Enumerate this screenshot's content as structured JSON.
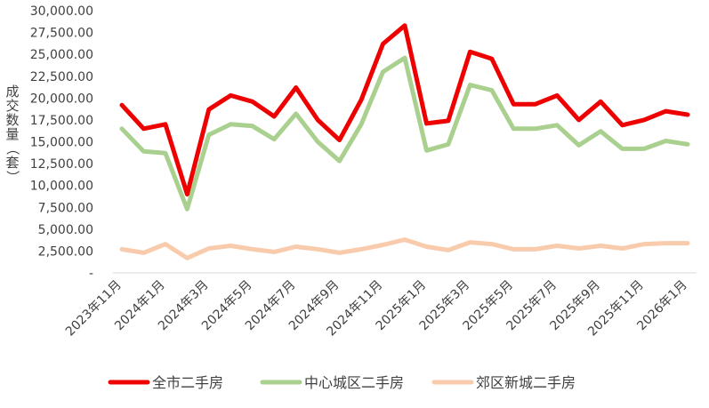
{
  "chart_data": {
    "type": "line",
    "ylabel": "成交数量（套）",
    "ylim": [
      0,
      30000
    ],
    "yticks": [
      {
        "value": 0,
        "label": "-"
      },
      {
        "value": 2500,
        "label": "2,500.00"
      },
      {
        "value": 5000,
        "label": "5,000.00"
      },
      {
        "value": 7500,
        "label": "7,500.00"
      },
      {
        "value": 10000,
        "label": "10,000.00"
      },
      {
        "value": 12500,
        "label": "12,500.00"
      },
      {
        "value": 15000,
        "label": "15,000.00"
      },
      {
        "value": 17500,
        "label": "17,500.00"
      },
      {
        "value": 20000,
        "label": "20,000.00"
      },
      {
        "value": 22500,
        "label": "22,500.00"
      },
      {
        "value": 25000,
        "label": "25,000.00"
      },
      {
        "value": 27500,
        "label": "27,500.00"
      },
      {
        "value": 30000,
        "label": "30,000.00"
      }
    ],
    "x": [
      "2023年11月",
      "2023年12月",
      "2024年1月",
      "2024年2月",
      "2024年3月",
      "2024年4月",
      "2024年5月",
      "2024年6月",
      "2024年7月",
      "2024年8月",
      "2024年9月",
      "2024年10月",
      "2024年11月",
      "2024年12月",
      "2025年1月",
      "2025年2月",
      "2025年3月",
      "2025年4月",
      "2025年5月",
      "2025年6月",
      "2025年7月",
      "2025年8月",
      "2025年9月",
      "2025年10月",
      "2025年11月",
      "2025年12月",
      "2026年1月"
    ],
    "xtick_labels": [
      "2023年11月",
      "2024年1月",
      "2024年3月",
      "2024年5月",
      "2024年7月",
      "2024年9月",
      "2024年11月",
      "2025年1月",
      "2025年3月",
      "2025年5月",
      "2025年7月",
      "2025年9月",
      "2025年11月",
      "2026年1月"
    ],
    "grid": false,
    "legend_position": "bottom",
    "series": [
      {
        "name": "全市二手房",
        "color": "#ee0000",
        "values": [
          19200,
          16500,
          17000,
          9000,
          18700,
          20300,
          19600,
          17900,
          21200,
          17500,
          15200,
          19800,
          26200,
          28300,
          17100,
          17400,
          25300,
          24500,
          19300,
          19300,
          20300,
          17500,
          19600,
          16900,
          17500,
          18500,
          18100
        ]
      },
      {
        "name": "中心城区二手房",
        "color": "#a9d08e",
        "values": [
          16500,
          13900,
          13700,
          7300,
          15800,
          17000,
          16800,
          15300,
          18200,
          15000,
          12800,
          17000,
          23000,
          24600,
          14000,
          14700,
          21500,
          20900,
          16500,
          16500,
          16900,
          14600,
          16200,
          14200,
          14200,
          15100,
          14700
        ]
      },
      {
        "name": "郊区新城二手房",
        "color": "#f8cbad",
        "values": [
          2700,
          2300,
          3300,
          1700,
          2800,
          3100,
          2700,
          2400,
          3000,
          2700,
          2300,
          2700,
          3200,
          3800,
          3000,
          2600,
          3500,
          3300,
          2700,
          2700,
          3100,
          2800,
          3100,
          2800,
          3300,
          3400,
          3400
        ]
      }
    ]
  }
}
